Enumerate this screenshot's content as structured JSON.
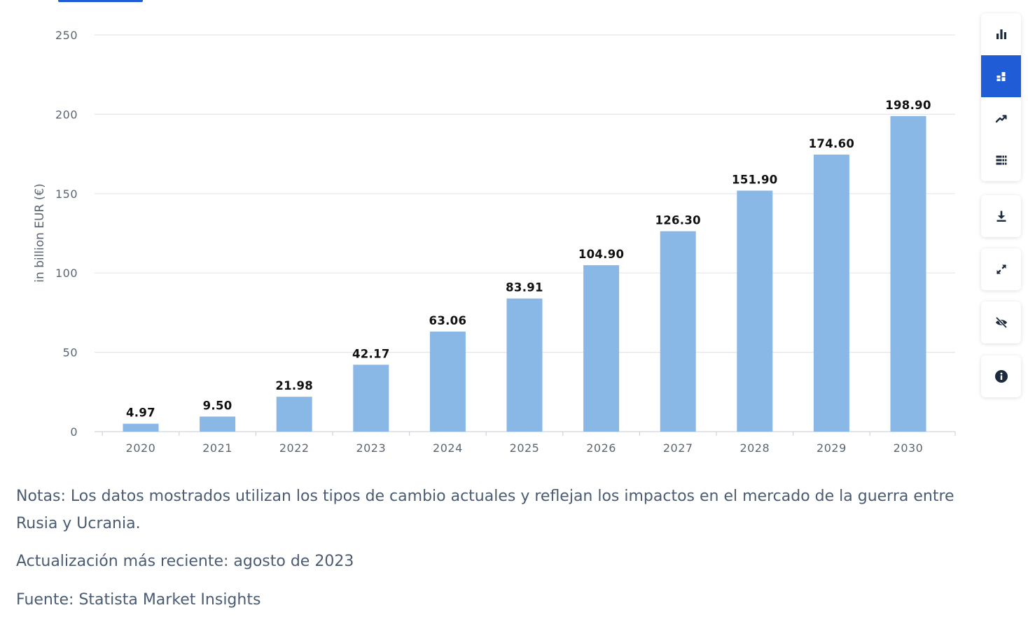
{
  "chart_data": {
    "type": "bar",
    "title": "",
    "xlabel": "",
    "ylabel": "in billion EUR (€)",
    "ylim": [
      0,
      250
    ],
    "yticks": [
      0,
      50,
      100,
      150,
      200,
      250
    ],
    "categories": [
      "2020",
      "2021",
      "2022",
      "2023",
      "2024",
      "2025",
      "2026",
      "2027",
      "2028",
      "2029",
      "2030"
    ],
    "values": [
      4.97,
      9.5,
      21.98,
      42.17,
      63.06,
      83.91,
      104.9,
      126.3,
      151.9,
      174.6,
      198.9
    ],
    "value_labels": [
      "4.97",
      "9.50",
      "21.98",
      "42.17",
      "63.06",
      "83.91",
      "104.90",
      "126.30",
      "151.90",
      "174.60",
      "198.90"
    ],
    "bar_color": "#8ab8e6",
    "grid": true
  },
  "toolbar": {
    "view_buttons": [
      {
        "icon": "bar-chart-icon",
        "active": false
      },
      {
        "icon": "stacked-chart-icon",
        "active": true
      },
      {
        "icon": "trend-line-icon",
        "active": false
      },
      {
        "icon": "table-grid-icon",
        "active": false
      }
    ],
    "download_icon": "download-icon",
    "fullscreen_icon": "expand-icon",
    "hide_icon": "eye-off-icon",
    "info_icon": "info-icon",
    "accent_color": "#1f5cd6",
    "icon_color": "#1c2a3e"
  },
  "notes": {
    "notes_text": "Notas: Los datos mostrados utilizan los tipos de cambio actuales y reflejan los impactos en el mercado de la guerra entre Rusia y Ucrania.",
    "update_text": "Actualización más reciente: agosto de 2023",
    "source_text": "Fuente: Statista Market Insights"
  }
}
